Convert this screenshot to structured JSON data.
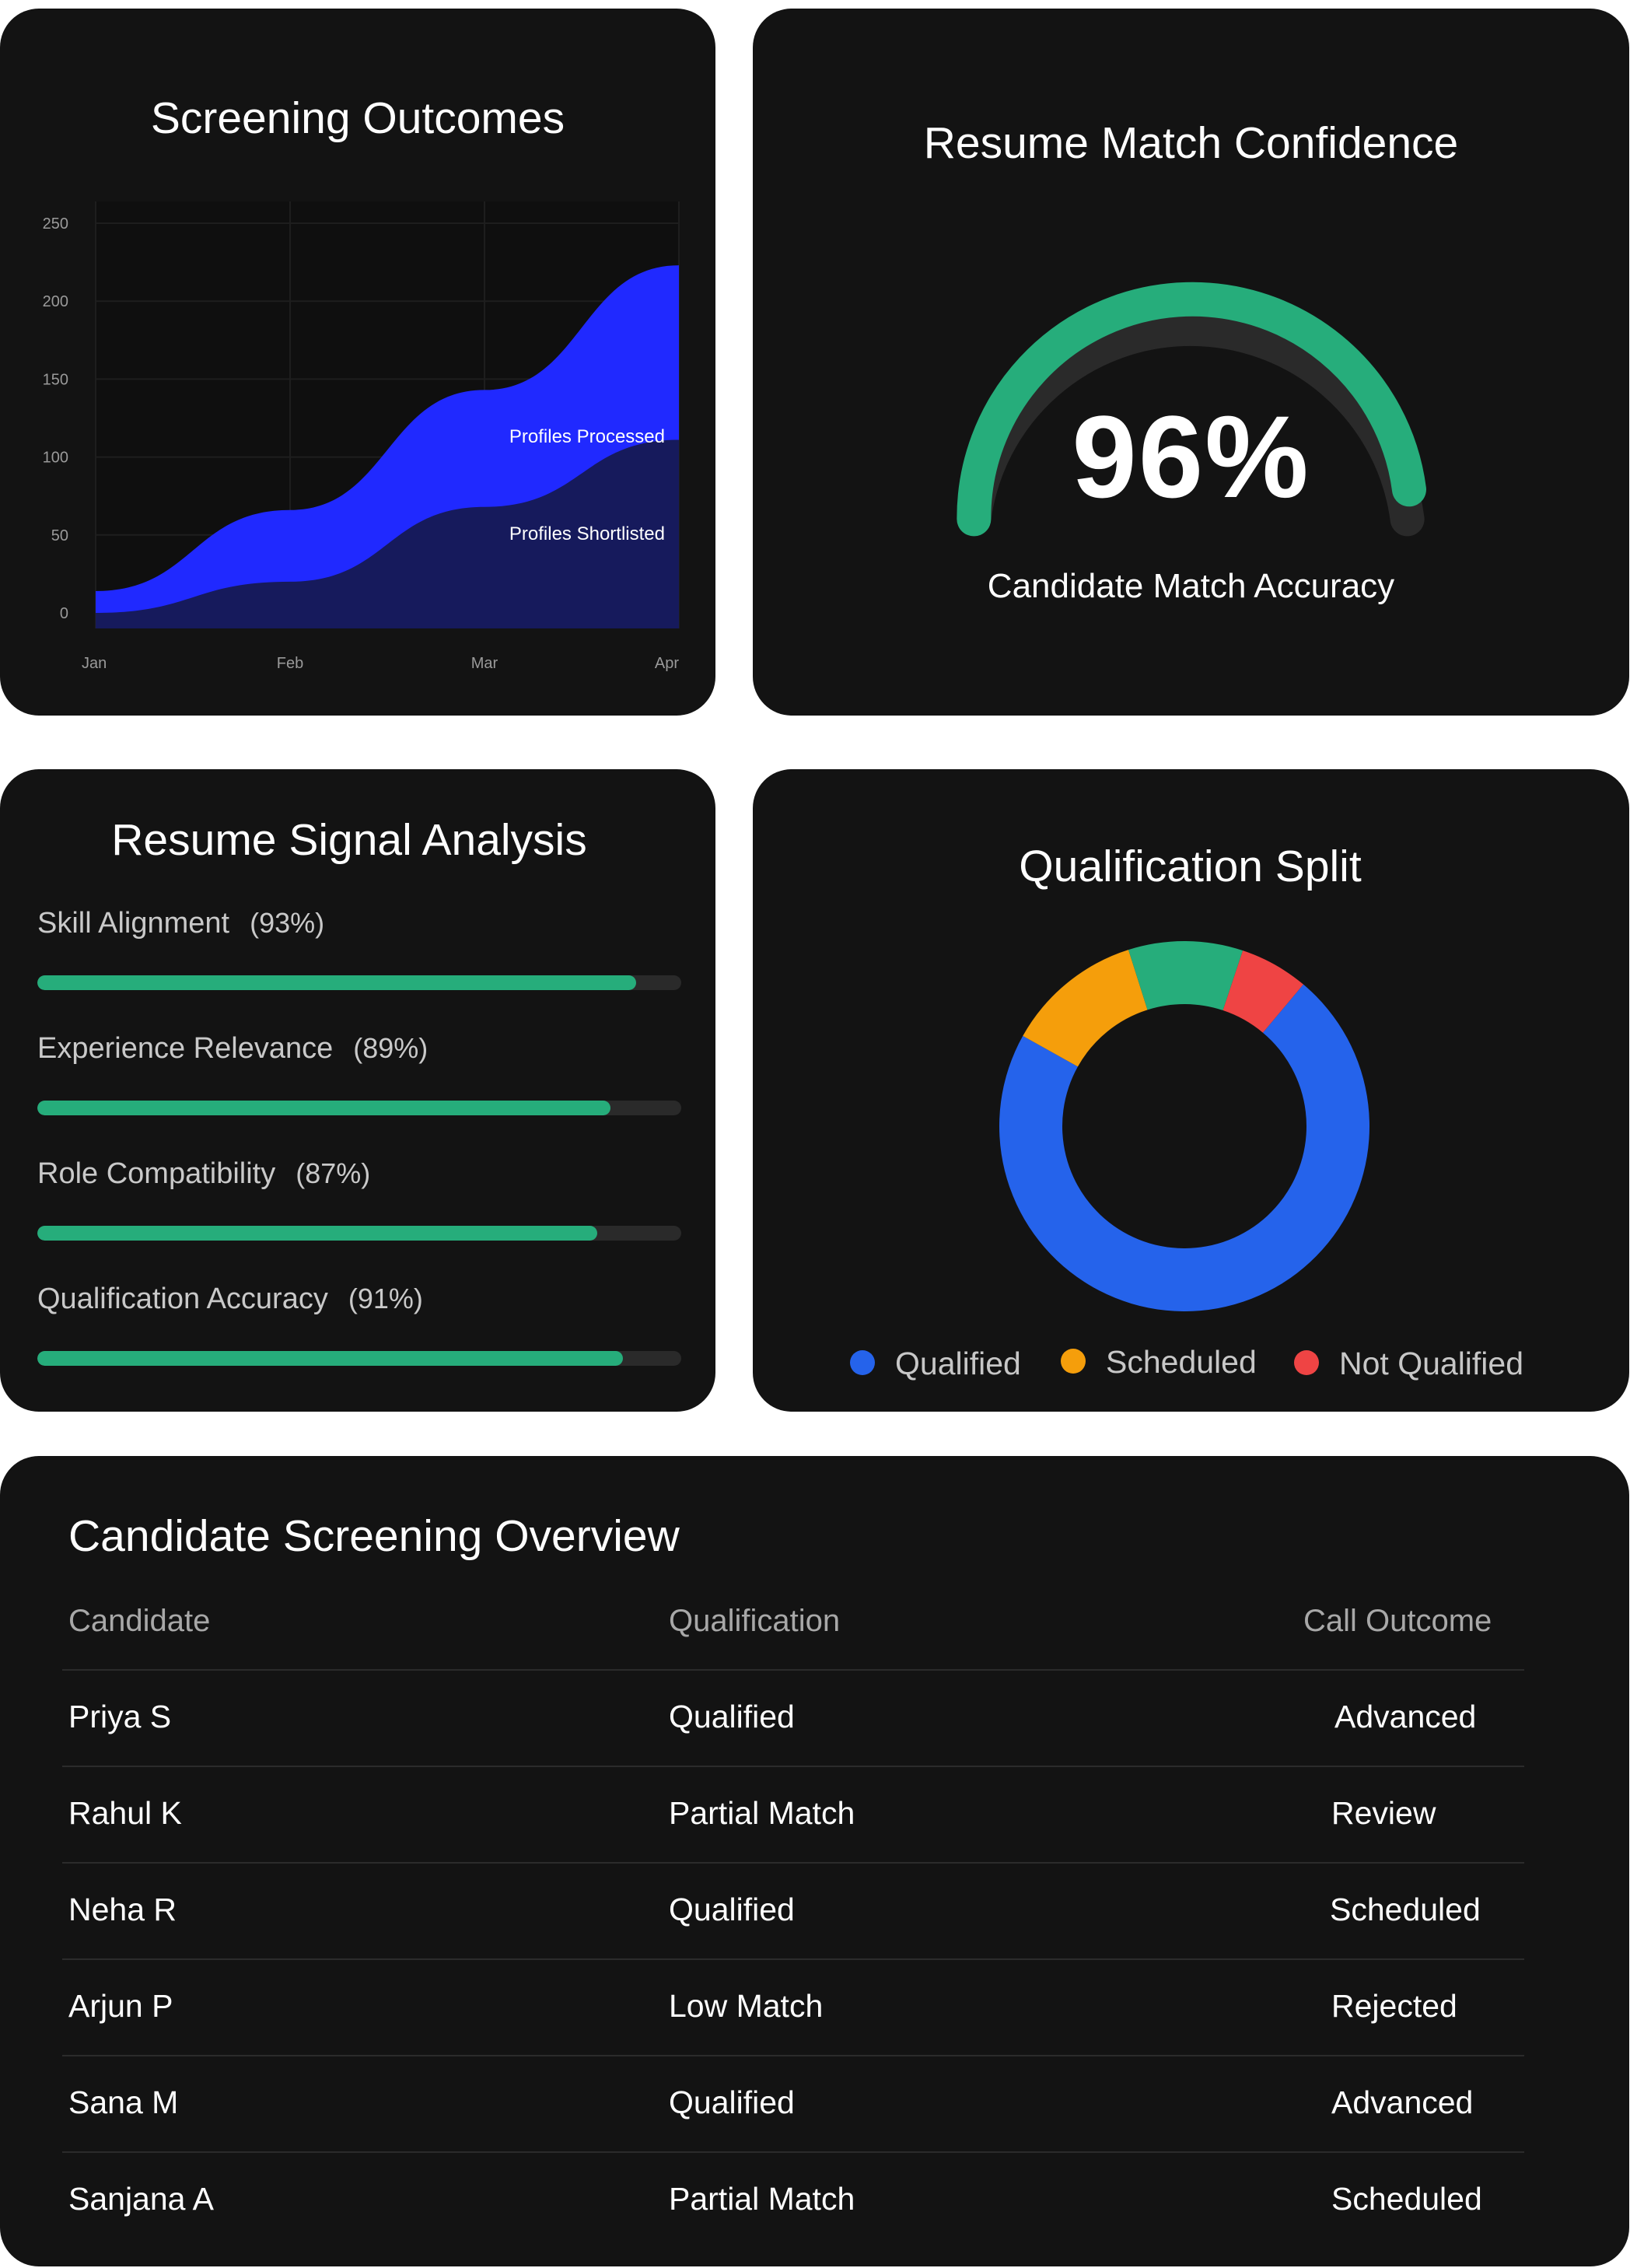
{
  "outcomes": {
    "title": "Screening Outcomes",
    "chart_data": {
      "type": "area",
      "x": [
        "Jan",
        "Feb",
        "Mar",
        "Apr"
      ],
      "ylim": [
        0,
        250
      ],
      "yticks": [
        0,
        50,
        100,
        150,
        200,
        250
      ],
      "series": [
        {
          "name": "Profiles Processed",
          "values": [
            14,
            66,
            143,
            223
          ],
          "color": "#2029ff"
        },
        {
          "name": "Profiles Shortlisted",
          "values": [
            0,
            20,
            68,
            111
          ],
          "color": "#161a5c"
        }
      ],
      "grid": true
    }
  },
  "confidence": {
    "title": "Resume Match Confidence",
    "value_text": "96%",
    "value": 96,
    "caption": "Candidate Match Accuracy",
    "colors": {
      "arc": "#26ad7b",
      "track": "#2a2a2a"
    }
  },
  "signals": {
    "title": "Resume Signal Analysis",
    "items": [
      {
        "label": "Skill Alignment",
        "pct_text": "(93%)",
        "value": 93
      },
      {
        "label": "Experience Relevance",
        "pct_text": "(89%)",
        "value": 89
      },
      {
        "label": "Role Compatibility",
        "pct_text": "(87%)",
        "value": 87
      },
      {
        "label": "Qualification Accuracy",
        "pct_text": "(91%)",
        "value": 91
      }
    ],
    "bar_color": "#26ad7b"
  },
  "split": {
    "title": "Qualification Split",
    "chart_data": {
      "type": "pie",
      "donut": true,
      "slices": [
        {
          "label": "Qualified",
          "value": 72,
          "color": "#2563eb"
        },
        {
          "label": "Scheduled",
          "value": 12,
          "color": "#f59e0b"
        },
        {
          "label": "",
          "value": 10,
          "color": "#26ad7b"
        },
        {
          "label": "Not Qualified",
          "value": 6,
          "color": "#ef4444"
        }
      ]
    },
    "legend": [
      {
        "label": "Qualified",
        "color": "#2563eb"
      },
      {
        "label": "Scheduled",
        "color": "#f59e0b"
      },
      {
        "label": "Not Qualified",
        "color": "#ef4444"
      }
    ]
  },
  "table": {
    "title": "Candidate Screening Overview",
    "columns": [
      "Candidate",
      "Qualification",
      "Call Outcome"
    ],
    "rows": [
      [
        "Priya S",
        "Qualified",
        "Advanced"
      ],
      [
        "Rahul K",
        "Partial Match",
        "Review"
      ],
      [
        "Neha R",
        "Qualified",
        "Scheduled"
      ],
      [
        "Arjun P",
        "Low Match",
        "Rejected"
      ],
      [
        "Sana M",
        "Qualified",
        "Advanced"
      ],
      [
        "Sanjana A",
        "Partial Match",
        "Scheduled"
      ]
    ]
  }
}
